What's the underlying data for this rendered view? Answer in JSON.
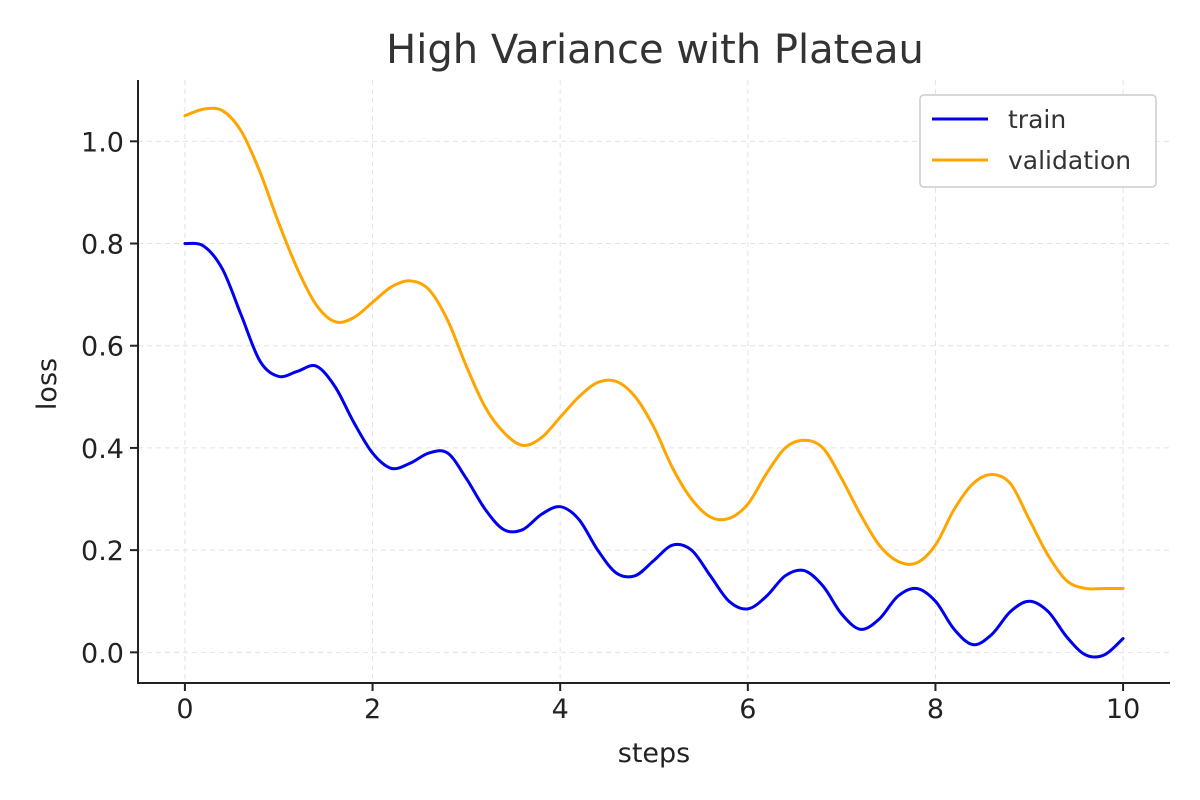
{
  "chart_data": {
    "type": "line",
    "title": "High Variance with Plateau",
    "xlabel": "steps",
    "ylabel": "loss",
    "xlim": [
      -0.5,
      10.5
    ],
    "ylim": [
      -0.06,
      1.12
    ],
    "xticks": [
      0,
      2,
      4,
      6,
      8,
      10
    ],
    "xtick_labels": [
      "0",
      "2",
      "4",
      "6",
      "8",
      "10"
    ],
    "yticks": [
      0.0,
      0.2,
      0.4,
      0.6,
      0.8,
      1.0
    ],
    "ytick_labels": [
      "0.0",
      "0.2",
      "0.4",
      "0.6",
      "0.8",
      "1.0"
    ],
    "grid": true,
    "legend_position": "top-right",
    "series": [
      {
        "name": "train",
        "color": "#0000ee",
        "x": [
          0,
          0.2,
          0.4,
          0.6,
          0.8,
          1.0,
          1.2,
          1.4,
          1.6,
          1.8,
          2.0,
          2.2,
          2.4,
          2.6,
          2.8,
          3.0,
          3.2,
          3.4,
          3.6,
          3.8,
          4.0,
          4.2,
          4.4,
          4.6,
          4.8,
          5.0,
          5.2,
          5.4,
          5.6,
          5.8,
          6.0,
          6.2,
          6.4,
          6.6,
          6.8,
          7.0,
          7.2,
          7.4,
          7.6,
          7.8,
          8.0,
          8.2,
          8.4,
          8.6,
          8.8,
          9.0,
          9.2,
          9.4,
          9.6,
          9.8,
          10.0
        ],
        "y": [
          0.8,
          0.795,
          0.75,
          0.66,
          0.57,
          0.54,
          0.55,
          0.56,
          0.52,
          0.45,
          0.39,
          0.36,
          0.37,
          0.39,
          0.39,
          0.34,
          0.28,
          0.24,
          0.24,
          0.27,
          0.285,
          0.26,
          0.2,
          0.155,
          0.15,
          0.18,
          0.21,
          0.2,
          0.15,
          0.1,
          0.085,
          0.11,
          0.15,
          0.16,
          0.13,
          0.075,
          0.045,
          0.065,
          0.11,
          0.125,
          0.1,
          0.045,
          0.015,
          0.035,
          0.08,
          0.1,
          0.08,
          0.03,
          -0.005,
          -0.005,
          0.027
        ]
      },
      {
        "name": "validation",
        "color": "#ffa500",
        "x": [
          0,
          0.2,
          0.4,
          0.6,
          0.8,
          1.0,
          1.2,
          1.4,
          1.6,
          1.8,
          2.0,
          2.2,
          2.4,
          2.6,
          2.8,
          3.0,
          3.2,
          3.4,
          3.6,
          3.8,
          4.0,
          4.2,
          4.4,
          4.6,
          4.8,
          5.0,
          5.2,
          5.4,
          5.6,
          5.8,
          6.0,
          6.2,
          6.4,
          6.6,
          6.8,
          7.0,
          7.2,
          7.4,
          7.6,
          7.8,
          8.0,
          8.2,
          8.4,
          8.6,
          8.8,
          9.0,
          9.2,
          9.4,
          9.6,
          9.8,
          10.0
        ],
        "y": [
          1.05,
          1.063,
          1.06,
          1.02,
          0.94,
          0.84,
          0.75,
          0.68,
          0.647,
          0.655,
          0.685,
          0.715,
          0.727,
          0.71,
          0.65,
          0.56,
          0.48,
          0.43,
          0.405,
          0.42,
          0.46,
          0.5,
          0.528,
          0.53,
          0.5,
          0.44,
          0.36,
          0.3,
          0.265,
          0.262,
          0.29,
          0.35,
          0.4,
          0.415,
          0.4,
          0.34,
          0.27,
          0.21,
          0.178,
          0.175,
          0.21,
          0.28,
          0.33,
          0.348,
          0.33,
          0.26,
          0.19,
          0.14,
          0.125,
          0.125,
          0.125
        ]
      }
    ]
  }
}
